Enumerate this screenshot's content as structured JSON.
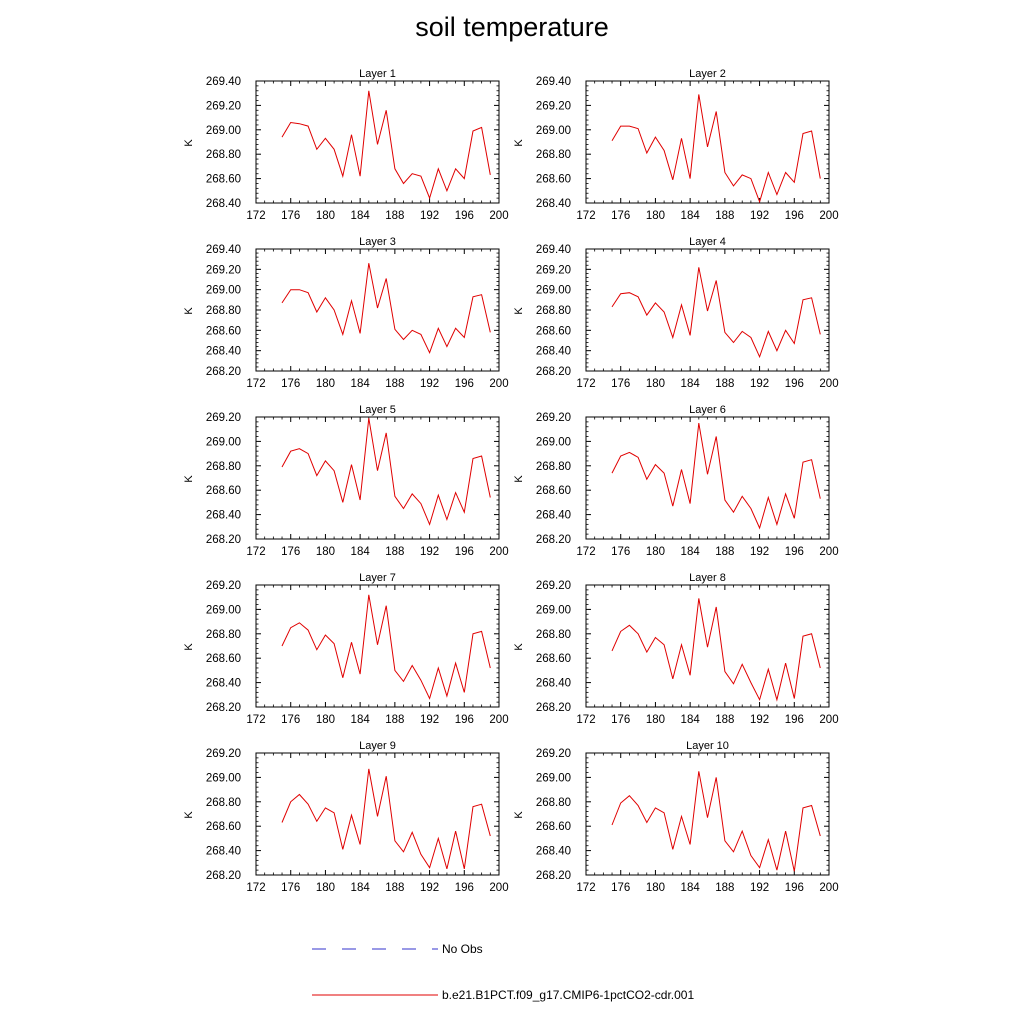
{
  "title": "soil temperature",
  "chart_data": [
    {
      "type": "line",
      "title": "Layer 1",
      "ylabel": "K",
      "xlim": [
        172,
        200
      ],
      "ylim": [
        268.4,
        269.4
      ],
      "xticks": [
        172,
        176,
        180,
        184,
        188,
        192,
        196,
        200
      ],
      "yticks": [
        268.4,
        268.6,
        268.8,
        269.0,
        269.2,
        269.4
      ],
      "series": [
        {
          "name": "b.e21.B1PCT.f09_g17.CMIP6-1pctCO2-cdr.001",
          "color": "#e00000",
          "x": [
            175,
            176,
            177,
            178,
            179,
            180,
            181,
            182,
            183,
            184,
            185,
            186,
            187,
            188,
            189,
            190,
            191,
            192,
            193,
            194,
            195,
            196,
            197,
            198,
            199
          ],
          "y": [
            268.94,
            269.06,
            269.05,
            269.03,
            268.84,
            268.93,
            268.84,
            268.62,
            268.96,
            268.62,
            269.32,
            268.88,
            269.16,
            268.68,
            268.56,
            268.64,
            268.62,
            268.44,
            268.68,
            268.5,
            268.68,
            268.6,
            268.99,
            269.02,
            268.63
          ]
        }
      ]
    },
    {
      "type": "line",
      "title": "Layer 2",
      "ylabel": "K",
      "xlim": [
        172,
        200
      ],
      "ylim": [
        268.4,
        269.4
      ],
      "xticks": [
        172,
        176,
        180,
        184,
        188,
        192,
        196,
        200
      ],
      "yticks": [
        268.4,
        268.6,
        268.8,
        269.0,
        269.2,
        269.4
      ],
      "series": [
        {
          "name": "b.e21.B1PCT.f09_g17.CMIP6-1pctCO2-cdr.001",
          "color": "#e00000",
          "x": [
            175,
            176,
            177,
            178,
            179,
            180,
            181,
            182,
            183,
            184,
            185,
            186,
            187,
            188,
            189,
            190,
            191,
            192,
            193,
            194,
            195,
            196,
            197,
            198,
            199
          ],
          "y": [
            268.91,
            269.03,
            269.03,
            269.01,
            268.81,
            268.94,
            268.83,
            268.59,
            268.93,
            268.6,
            269.29,
            268.86,
            269.15,
            268.65,
            268.54,
            268.63,
            268.6,
            268.41,
            268.65,
            268.47,
            268.65,
            268.57,
            268.97,
            268.99,
            268.6
          ]
        }
      ]
    },
    {
      "type": "line",
      "title": "Layer 3",
      "ylabel": "K",
      "xlim": [
        172,
        200
      ],
      "ylim": [
        268.2,
        269.4
      ],
      "xticks": [
        172,
        176,
        180,
        184,
        188,
        192,
        196,
        200
      ],
      "yticks": [
        268.2,
        268.4,
        268.6,
        268.8,
        269.0,
        269.2,
        269.4
      ],
      "series": [
        {
          "name": "b.e21.B1PCT.f09_g17.CMIP6-1pctCO2-cdr.001",
          "color": "#e00000",
          "x": [
            175,
            176,
            177,
            178,
            179,
            180,
            181,
            182,
            183,
            184,
            185,
            186,
            187,
            188,
            189,
            190,
            191,
            192,
            193,
            194,
            195,
            196,
            197,
            198,
            199
          ],
          "y": [
            268.87,
            269.0,
            269.0,
            268.97,
            268.78,
            268.92,
            268.8,
            268.56,
            268.89,
            268.57,
            269.26,
            268.82,
            269.11,
            268.61,
            268.51,
            268.6,
            268.56,
            268.38,
            268.62,
            268.44,
            268.62,
            268.53,
            268.93,
            268.95,
            268.58
          ]
        }
      ]
    },
    {
      "type": "line",
      "title": "Layer 4",
      "ylabel": "K",
      "xlim": [
        172,
        200
      ],
      "ylim": [
        268.2,
        269.4
      ],
      "xticks": [
        172,
        176,
        180,
        184,
        188,
        192,
        196,
        200
      ],
      "yticks": [
        268.2,
        268.4,
        268.6,
        268.8,
        269.0,
        269.2,
        269.4
      ],
      "series": [
        {
          "name": "b.e21.B1PCT.f09_g17.CMIP6-1pctCO2-cdr.001",
          "color": "#e00000",
          "x": [
            175,
            176,
            177,
            178,
            179,
            180,
            181,
            182,
            183,
            184,
            185,
            186,
            187,
            188,
            189,
            190,
            191,
            192,
            193,
            194,
            195,
            196,
            197,
            198,
            199
          ],
          "y": [
            268.83,
            268.96,
            268.97,
            268.93,
            268.75,
            268.87,
            268.78,
            268.53,
            268.85,
            268.55,
            269.22,
            268.79,
            269.09,
            268.58,
            268.48,
            268.59,
            268.53,
            268.34,
            268.59,
            268.4,
            268.6,
            268.47,
            268.9,
            268.92,
            268.56
          ]
        }
      ]
    },
    {
      "type": "line",
      "title": "Layer 5",
      "ylabel": "K",
      "xlim": [
        172,
        200
      ],
      "ylim": [
        268.2,
        269.2
      ],
      "xticks": [
        172,
        176,
        180,
        184,
        188,
        192,
        196,
        200
      ],
      "yticks": [
        268.2,
        268.4,
        268.6,
        268.8,
        269.0,
        269.2
      ],
      "series": [
        {
          "name": "b.e21.B1PCT.f09_g17.CMIP6-1pctCO2-cdr.001",
          "color": "#e00000",
          "x": [
            175,
            176,
            177,
            178,
            179,
            180,
            181,
            182,
            183,
            184,
            185,
            186,
            187,
            188,
            189,
            190,
            191,
            192,
            193,
            194,
            195,
            196,
            197,
            198,
            199
          ],
          "y": [
            268.79,
            268.92,
            268.94,
            268.9,
            268.72,
            268.84,
            268.76,
            268.5,
            268.81,
            268.52,
            269.19,
            268.76,
            269.07,
            268.55,
            268.45,
            268.57,
            268.49,
            268.32,
            268.56,
            268.36,
            268.58,
            268.42,
            268.86,
            268.88,
            268.54
          ]
        }
      ]
    },
    {
      "type": "line",
      "title": "Layer 6",
      "ylabel": "K",
      "xlim": [
        172,
        200
      ],
      "ylim": [
        268.2,
        269.2
      ],
      "xticks": [
        172,
        176,
        180,
        184,
        188,
        192,
        196,
        200
      ],
      "yticks": [
        268.2,
        268.4,
        268.6,
        268.8,
        269.0,
        269.2
      ],
      "series": [
        {
          "name": "b.e21.B1PCT.f09_g17.CMIP6-1pctCO2-cdr.001",
          "color": "#e00000",
          "x": [
            175,
            176,
            177,
            178,
            179,
            180,
            181,
            182,
            183,
            184,
            185,
            186,
            187,
            188,
            189,
            190,
            191,
            192,
            193,
            194,
            195,
            196,
            197,
            198,
            199
          ],
          "y": [
            268.74,
            268.88,
            268.91,
            268.87,
            268.69,
            268.81,
            268.74,
            268.47,
            268.77,
            268.49,
            269.15,
            268.73,
            269.04,
            268.52,
            268.42,
            268.55,
            268.45,
            268.29,
            268.54,
            268.32,
            268.57,
            268.37,
            268.83,
            268.85,
            268.53
          ]
        }
      ]
    },
    {
      "type": "line",
      "title": "Layer 7",
      "ylabel": "K",
      "xlim": [
        172,
        200
      ],
      "ylim": [
        268.2,
        269.2
      ],
      "xticks": [
        172,
        176,
        180,
        184,
        188,
        192,
        196,
        200
      ],
      "yticks": [
        268.2,
        268.4,
        268.6,
        268.8,
        269.0,
        269.2
      ],
      "series": [
        {
          "name": "b.e21.B1PCT.f09_g17.CMIP6-1pctCO2-cdr.001",
          "color": "#e00000",
          "x": [
            175,
            176,
            177,
            178,
            179,
            180,
            181,
            182,
            183,
            184,
            185,
            186,
            187,
            188,
            189,
            190,
            191,
            192,
            193,
            194,
            195,
            196,
            197,
            198,
            199
          ],
          "y": [
            268.7,
            268.85,
            268.89,
            268.83,
            268.67,
            268.79,
            268.72,
            268.44,
            268.73,
            268.47,
            269.12,
            268.71,
            269.03,
            268.5,
            268.41,
            268.54,
            268.42,
            268.27,
            268.52,
            268.29,
            268.56,
            268.32,
            268.8,
            268.82,
            268.52
          ]
        }
      ]
    },
    {
      "type": "line",
      "title": "Layer 8",
      "ylabel": "K",
      "xlim": [
        172,
        200
      ],
      "ylim": [
        268.2,
        269.2
      ],
      "xticks": [
        172,
        176,
        180,
        184,
        188,
        192,
        196,
        200
      ],
      "yticks": [
        268.2,
        268.4,
        268.6,
        268.8,
        269.0,
        269.2
      ],
      "series": [
        {
          "name": "b.e21.B1PCT.f09_g17.CMIP6-1pctCO2-cdr.001",
          "color": "#e00000",
          "x": [
            175,
            176,
            177,
            178,
            179,
            180,
            181,
            182,
            183,
            184,
            185,
            186,
            187,
            188,
            189,
            190,
            191,
            192,
            193,
            194,
            195,
            196,
            197,
            198,
            199
          ],
          "y": [
            268.66,
            268.82,
            268.87,
            268.8,
            268.65,
            268.77,
            268.71,
            268.43,
            268.71,
            268.46,
            269.09,
            268.69,
            269.02,
            268.49,
            268.39,
            268.55,
            268.4,
            268.26,
            268.51,
            268.26,
            268.56,
            268.27,
            268.78,
            268.8,
            268.52
          ]
        }
      ]
    },
    {
      "type": "line",
      "title": "Layer 9",
      "ylabel": "K",
      "xlim": [
        172,
        200
      ],
      "ylim": [
        268.2,
        269.2
      ],
      "xticks": [
        172,
        176,
        180,
        184,
        188,
        192,
        196,
        200
      ],
      "yticks": [
        268.2,
        268.4,
        268.6,
        268.8,
        269.0,
        269.2
      ],
      "series": [
        {
          "name": "b.e21.B1PCT.f09_g17.CMIP6-1pctCO2-cdr.001",
          "color": "#e00000",
          "x": [
            175,
            176,
            177,
            178,
            179,
            180,
            181,
            182,
            183,
            184,
            185,
            186,
            187,
            188,
            189,
            190,
            191,
            192,
            193,
            194,
            195,
            196,
            197,
            198,
            199
          ],
          "y": [
            268.63,
            268.8,
            268.86,
            268.78,
            268.64,
            268.75,
            268.71,
            268.41,
            268.69,
            268.45,
            269.07,
            268.68,
            269.01,
            268.48,
            268.39,
            268.55,
            268.37,
            268.26,
            268.5,
            268.25,
            268.56,
            268.25,
            268.76,
            268.78,
            268.52
          ]
        }
      ]
    },
    {
      "type": "line",
      "title": "Layer 10",
      "ylabel": "K",
      "xlim": [
        172,
        200
      ],
      "ylim": [
        268.2,
        269.2
      ],
      "xticks": [
        172,
        176,
        180,
        184,
        188,
        192,
        196,
        200
      ],
      "yticks": [
        268.2,
        268.4,
        268.6,
        268.8,
        269.0,
        269.2
      ],
      "series": [
        {
          "name": "b.e21.B1PCT.f09_g17.CMIP6-1pctCO2-cdr.001",
          "color": "#e00000",
          "x": [
            175,
            176,
            177,
            178,
            179,
            180,
            181,
            182,
            183,
            184,
            185,
            186,
            187,
            188,
            189,
            190,
            191,
            192,
            193,
            194,
            195,
            196,
            197,
            198,
            199
          ],
          "y": [
            268.61,
            268.79,
            268.85,
            268.77,
            268.63,
            268.75,
            268.71,
            268.41,
            268.68,
            268.45,
            269.05,
            268.67,
            269.0,
            268.48,
            268.39,
            268.56,
            268.36,
            268.26,
            268.49,
            268.24,
            268.56,
            268.23,
            268.75,
            268.77,
            268.52
          ]
        }
      ]
    }
  ],
  "legend": {
    "items": [
      {
        "label": "No Obs",
        "color": "#3333cc",
        "style": "dashed"
      },
      {
        "label": "b.e21.B1PCT.f09_g17.CMIP6-1pctCO2-cdr.001",
        "color": "#e00000",
        "style": "solid"
      }
    ]
  }
}
